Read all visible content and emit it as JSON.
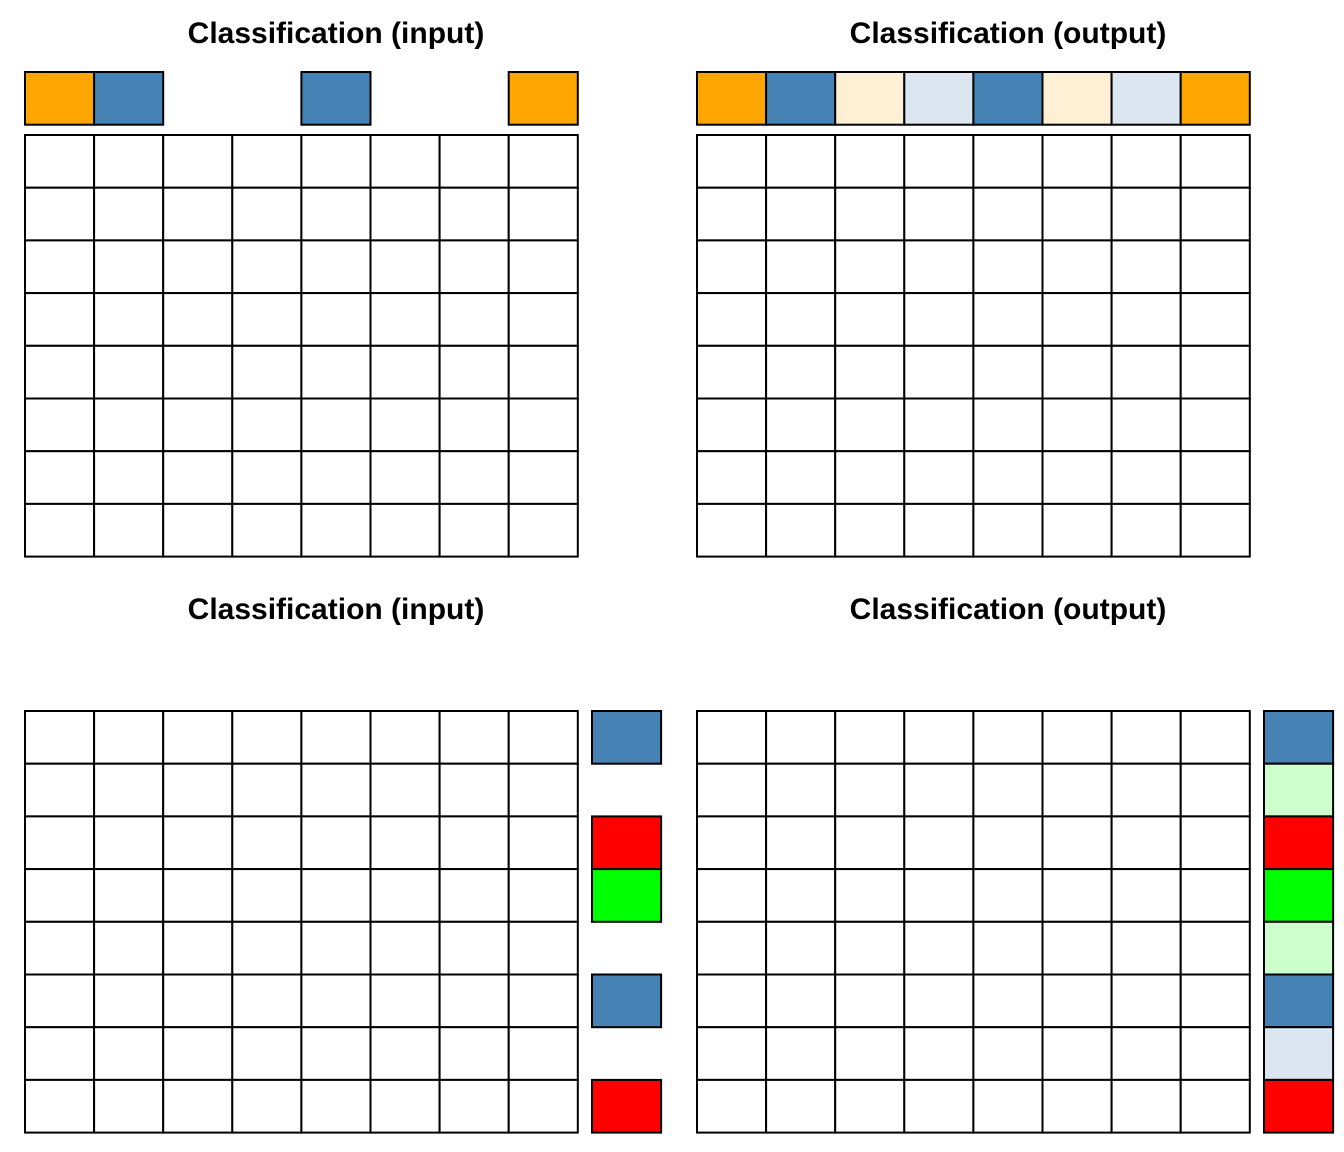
{
  "colors": {
    "orange": "#ffa500",
    "blue": "#4682b4",
    "light_orange": "#ffefd5",
    "light_blue": "#dce6f0",
    "red": "#ff0000",
    "green": "#00ff00",
    "light_green": "#ccffcc"
  },
  "panels": [
    {
      "title": "Classification (input)",
      "grid": {
        "rows": 8,
        "cols": 8
      },
      "labels": {
        "orientation": "row",
        "cells": [
          "orange",
          "blue",
          null,
          null,
          "blue",
          null,
          null,
          "orange"
        ]
      }
    },
    {
      "title": "Classification (output)",
      "grid": {
        "rows": 8,
        "cols": 8
      },
      "labels": {
        "orientation": "row",
        "cells": [
          "orange",
          "blue",
          "light_orange",
          "light_blue",
          "blue",
          "light_orange",
          "light_blue",
          "orange"
        ]
      }
    },
    {
      "title": "Classification (input)",
      "grid": {
        "rows": 8,
        "cols": 8
      },
      "labels": {
        "orientation": "column",
        "cells": [
          "blue",
          null,
          "red",
          "green",
          null,
          "blue",
          null,
          "red"
        ]
      }
    },
    {
      "title": "Classification (output)",
      "grid": {
        "rows": 8,
        "cols": 8
      },
      "labels": {
        "orientation": "column",
        "cells": [
          "blue",
          "light_green",
          "red",
          "green",
          "light_green",
          "blue",
          "light_blue",
          "red"
        ]
      }
    }
  ]
}
